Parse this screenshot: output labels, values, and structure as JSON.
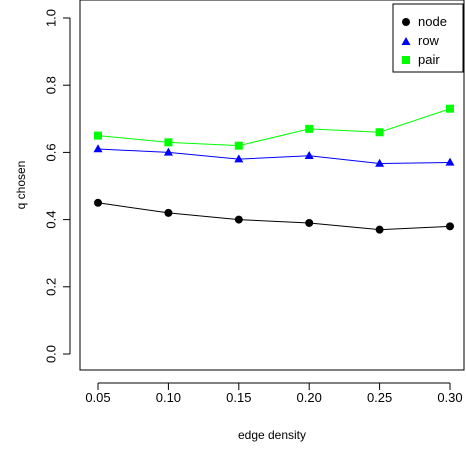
{
  "chart_data": {
    "type": "line",
    "title": "",
    "xlabel": "edge density",
    "ylabel": "q chosen",
    "x": [
      0.05,
      0.1,
      0.15,
      0.2,
      0.25,
      0.3
    ],
    "x_tick_labels": [
      "0.05",
      "0.10",
      "0.15",
      "0.20",
      "0.25",
      "0.30"
    ],
    "y_ticks": [
      0.0,
      0.2,
      0.4,
      0.6,
      0.8,
      1.0
    ],
    "y_tick_labels": [
      "0.0",
      "0.2",
      "0.4",
      "0.6",
      "0.8",
      "1.0"
    ],
    "xlim": [
      0.05,
      0.3
    ],
    "ylim": [
      0.0,
      1.0
    ],
    "grid": false,
    "legend_position": "top-right",
    "series": [
      {
        "name": "node",
        "values": [
          0.45,
          0.42,
          0.4,
          0.39,
          0.37,
          0.38
        ],
        "color": "#000000",
        "marker": "circle"
      },
      {
        "name": "row",
        "values": [
          0.61,
          0.6,
          0.58,
          0.59,
          0.567,
          0.57
        ],
        "color": "#0000ff",
        "marker": "triangle"
      },
      {
        "name": "pair",
        "values": [
          0.65,
          0.63,
          0.62,
          0.67,
          0.66,
          0.73
        ],
        "color": "#00ff00",
        "marker": "square"
      }
    ]
  }
}
